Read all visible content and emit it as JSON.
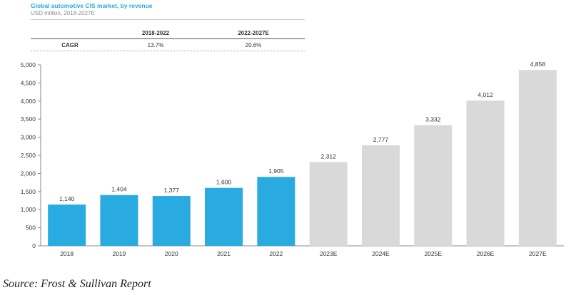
{
  "header": {
    "title": "Global automotive CIS market, by revenue",
    "subtitle": "USD million, 2018-2027E"
  },
  "cagr_table": {
    "headers": [
      "",
      "2018-2022",
      "2022-2027E"
    ],
    "row_label": "CAGR",
    "values": [
      "13.7%",
      "20.6%"
    ]
  },
  "chart_data": {
    "type": "bar",
    "categories": [
      "2018",
      "2019",
      "2020",
      "2021",
      "2022",
      "2023E",
      "2024E",
      "2025E",
      "2026E",
      "2027E"
    ],
    "values": [
      1140,
      1404,
      1377,
      1600,
      1905,
      2312,
      2777,
      3332,
      4012,
      4858
    ],
    "value_labels": [
      "1,140",
      "1,404",
      "1,377",
      "1,600",
      "1,905",
      "2,312",
      "2,777",
      "3,332",
      "4,012",
      "4,858"
    ],
    "ylim": [
      0,
      5000
    ],
    "yticks": [
      0,
      500,
      1000,
      1500,
      2000,
      2500,
      3000,
      3500,
      4000,
      4500,
      5000
    ],
    "ytick_labels": [
      "0",
      "500",
      "1,000",
      "1,500",
      "2,000",
      "2,500",
      "3,000",
      "3,500",
      "4,000",
      "4,500",
      "5,000"
    ],
    "colors": {
      "actual": "#29abe2",
      "forecast": "#d9d9d9"
    },
    "forecast_start_index": 5,
    "grid": false
  },
  "footer": {
    "source": "Source: Frost & Sullivan Report"
  }
}
